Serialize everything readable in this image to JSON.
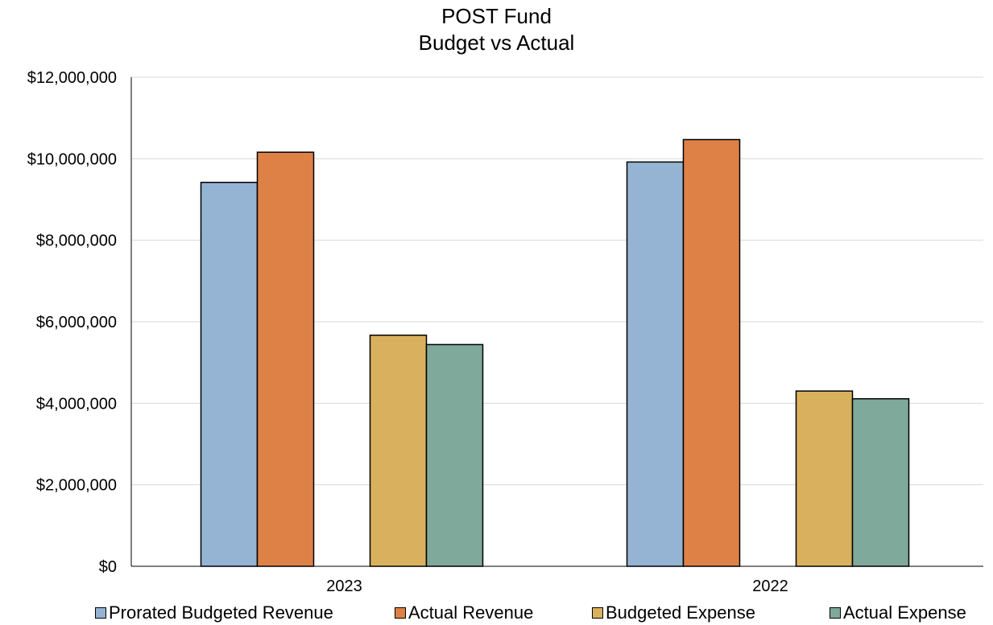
{
  "chart_data": {
    "type": "bar",
    "title_lines": [
      "POST Fund",
      "Budget vs Actual"
    ],
    "categories": [
      "2023",
      "2022"
    ],
    "series": [
      {
        "name": "Prorated Budgeted Revenue",
        "color": "#95B3D3",
        "values": [
          9420000,
          9920000
        ]
      },
      {
        "name": "Actual Revenue",
        "color": "#DE8147",
        "values": [
          10160000,
          10470000
        ]
      },
      {
        "name": "Budgeted Expense",
        "color": "#D9B15E",
        "values": [
          5670000,
          4300000
        ]
      },
      {
        "name": "Actual Expense",
        "color": "#7FA99B",
        "values": [
          5440000,
          4110000
        ]
      }
    ],
    "ylim": [
      0,
      12000000
    ],
    "yticks": [
      0,
      2000000,
      4000000,
      6000000,
      8000000,
      10000000,
      12000000
    ],
    "ytick_labels": [
      "$0",
      "$2,000,000",
      "$4,000,000",
      "$6,000,000",
      "$8,000,000",
      "$10,000,000",
      "$12,000,000"
    ],
    "grid": true,
    "legend_position": "bottom"
  }
}
